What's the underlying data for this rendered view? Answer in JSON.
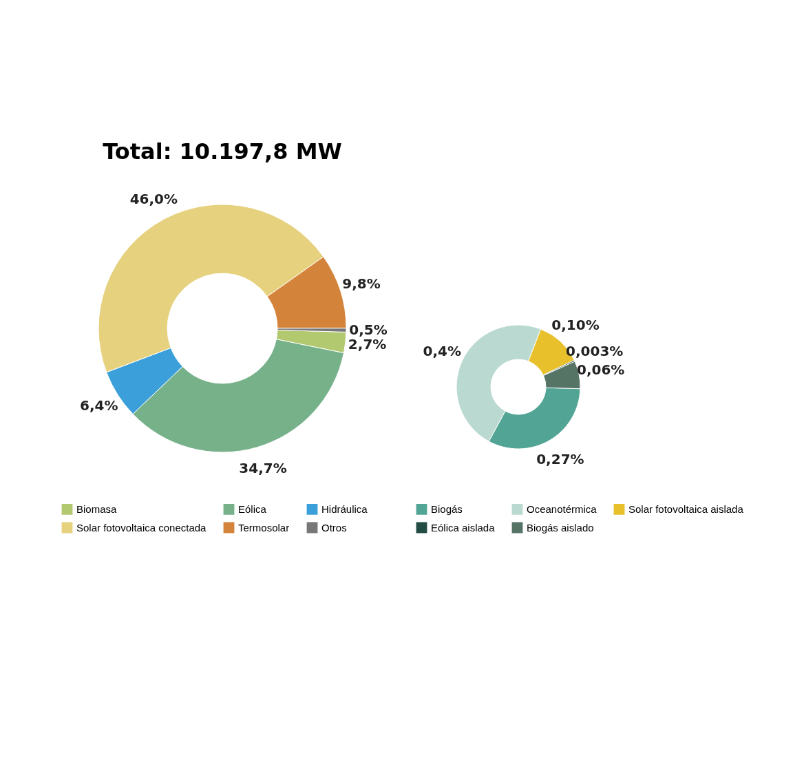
{
  "chart_data": [
    {
      "type": "donut",
      "title": "Total: 10.197,8 MW",
      "categories": [
        "Biomasa",
        "Eólica",
        "Hidráulica",
        "Solar fotovoltaica conectada",
        "Termosolar",
        "Otros"
      ],
      "values": [
        2.7,
        34.7,
        6.4,
        46.0,
        9.8,
        0.5
      ],
      "colors": [
        "#b2c96f",
        "#76b18a",
        "#3b9fd9",
        "#e6d17e",
        "#d4843a",
        "#777777"
      ],
      "value_labels": [
        "2,7%",
        "34,7%",
        "6,4%",
        "46,0%",
        "9,8%",
        "0,5%"
      ],
      "legend": "bottom"
    },
    {
      "type": "donut",
      "categories": [
        "Biogás",
        "Oceanotérmica",
        "Solar fotovoltaica aislada",
        "Eólica aislada",
        "Biogás aislado"
      ],
      "values": [
        0.27,
        0.4,
        0.1,
        0.003,
        0.06
      ],
      "colors": [
        "#52a495",
        "#b9d9d1",
        "#e8c02b",
        "#234d44",
        "#557466"
      ],
      "value_labels": [
        "0,27%",
        "0,4%",
        "0,10%",
        "0,003%",
        "0,06%"
      ],
      "legend": "bottom"
    }
  ]
}
